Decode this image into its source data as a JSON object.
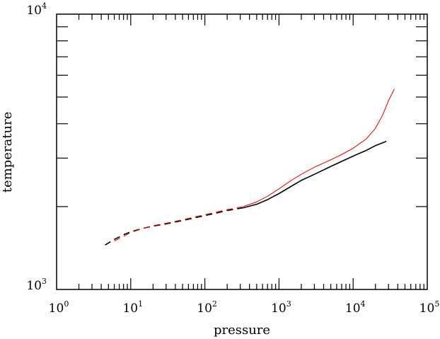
{
  "chart_data": {
    "type": "line",
    "title": "",
    "xlabel": "pressure",
    "ylabel": "temperature",
    "xscale": "log",
    "yscale": "log",
    "xlim": [
      1,
      100000
    ],
    "ylim": [
      1000,
      10000
    ],
    "grid": false,
    "x_ticks": [
      {
        "base": "10",
        "exp": "0",
        "value": 1
      },
      {
        "base": "10",
        "exp": "1",
        "value": 10
      },
      {
        "base": "10",
        "exp": "2",
        "value": 100
      },
      {
        "base": "10",
        "exp": "3",
        "value": 1000
      },
      {
        "base": "10",
        "exp": "4",
        "value": 10000
      },
      {
        "base": "10",
        "exp": "5",
        "value": 100000
      }
    ],
    "y_ticks": [
      {
        "base": "10",
        "exp": "3",
        "value": 1000
      },
      {
        "base": "10",
        "exp": "4",
        "value": 10000
      }
    ],
    "series": [
      {
        "color": "#000000",
        "segments": [
          {
            "style": "dashed",
            "points": [
              [
                4.5,
                1450
              ],
              [
                6,
                1520
              ],
              [
                8,
                1580
              ],
              [
                10,
                1620
              ],
              [
                15,
                1670
              ],
              [
                20,
                1700
              ],
              [
                30,
                1730
              ],
              [
                50,
                1780
              ],
              [
                80,
                1830
              ],
              [
                100,
                1855
              ],
              [
                150,
                1900
              ],
              [
                200,
                1935
              ],
              [
                330,
                1980
              ]
            ]
          },
          {
            "style": "solid",
            "points": [
              [
                330,
                1980
              ],
              [
                500,
                2040
              ],
              [
                700,
                2120
              ],
              [
                1000,
                2230
              ],
              [
                1500,
                2380
              ],
              [
                2000,
                2490
              ],
              [
                3000,
                2620
              ],
              [
                5000,
                2800
              ],
              [
                7000,
                2920
              ],
              [
                10000,
                3050
              ],
              [
                15000,
                3200
              ],
              [
                20000,
                3330
              ],
              [
                28000,
                3450
              ]
            ]
          }
        ]
      },
      {
        "color": "#e01010",
        "segments": [
          {
            "style": "dashed",
            "points": [
              [
                6,
                1500
              ],
              [
                8,
                1560
              ],
              [
                10,
                1610
              ],
              [
                15,
                1670
              ],
              [
                20,
                1705
              ],
              [
                30,
                1740
              ],
              [
                50,
                1790
              ],
              [
                80,
                1845
              ],
              [
                100,
                1870
              ],
              [
                150,
                1915
              ],
              [
                200,
                1950
              ],
              [
                330,
                2000
              ]
            ]
          },
          {
            "style": "solid",
            "points": [
              [
                330,
                2000
              ],
              [
                500,
                2080
              ],
              [
                700,
                2180
              ],
              [
                1000,
                2320
              ],
              [
                1500,
                2500
              ],
              [
                2000,
                2620
              ],
              [
                3000,
                2780
              ],
              [
                5000,
                2960
              ],
              [
                7000,
                3090
              ],
              [
                10000,
                3260
              ],
              [
                15000,
                3520
              ],
              [
                20000,
                3850
              ],
              [
                25000,
                4300
              ],
              [
                30000,
                4850
              ],
              [
                36000,
                5350
              ]
            ]
          }
        ]
      }
    ]
  }
}
